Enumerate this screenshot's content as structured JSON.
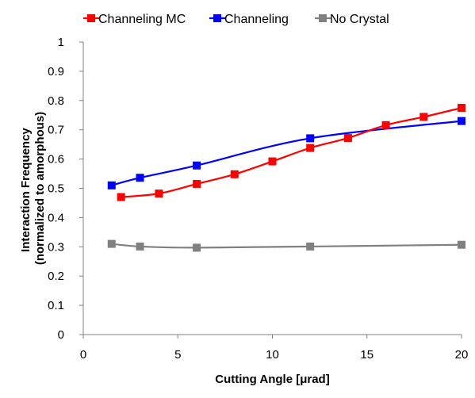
{
  "chart_data": {
    "type": "line",
    "title": "",
    "xlabel": "Cutting Angle [μrad]",
    "ylabel": [
      "Interaction Frequency",
      "(normalized to amorphous)"
    ],
    "xlim": [
      0,
      20
    ],
    "ylim": [
      0,
      1
    ],
    "x_ticks": [
      "0",
      "5",
      "10",
      "15",
      "20"
    ],
    "x_tick_values": [
      0,
      5,
      10,
      15,
      20
    ],
    "y_ticks": [
      "0",
      "0.1",
      "0.2",
      "0.3",
      "0.4",
      "0.5",
      "0.6",
      "0.7",
      "0.8",
      "0.9",
      "1"
    ],
    "y_tick_values": [
      0,
      0.1,
      0.2,
      0.3,
      0.4,
      0.5,
      0.6,
      0.7,
      0.8,
      0.9,
      1.0
    ],
    "grid": "none",
    "legend_position": "top",
    "series": [
      {
        "name": "Channeling MC",
        "color": "#ff0000",
        "marker_color": "#ff0000",
        "x": [
          2,
          4,
          6,
          8,
          10,
          12,
          14,
          16,
          18,
          20
        ],
        "y": [
          0.47,
          0.482,
          0.515,
          0.548,
          0.592,
          0.638,
          0.672,
          0.716,
          0.744,
          0.775
        ]
      },
      {
        "name": "Channeling",
        "color": "#0000ff",
        "marker_color": "#0000ff",
        "x": [
          1.5,
          3,
          6,
          12,
          20
        ],
        "y": [
          0.51,
          0.536,
          0.578,
          0.671,
          0.73
        ]
      },
      {
        "name": "No Crystal",
        "color": "#808080",
        "marker_color": "#808080",
        "x": [
          1.5,
          3,
          6,
          12,
          20
        ],
        "y": [
          0.31,
          0.301,
          0.297,
          0.301,
          0.307
        ]
      }
    ]
  }
}
